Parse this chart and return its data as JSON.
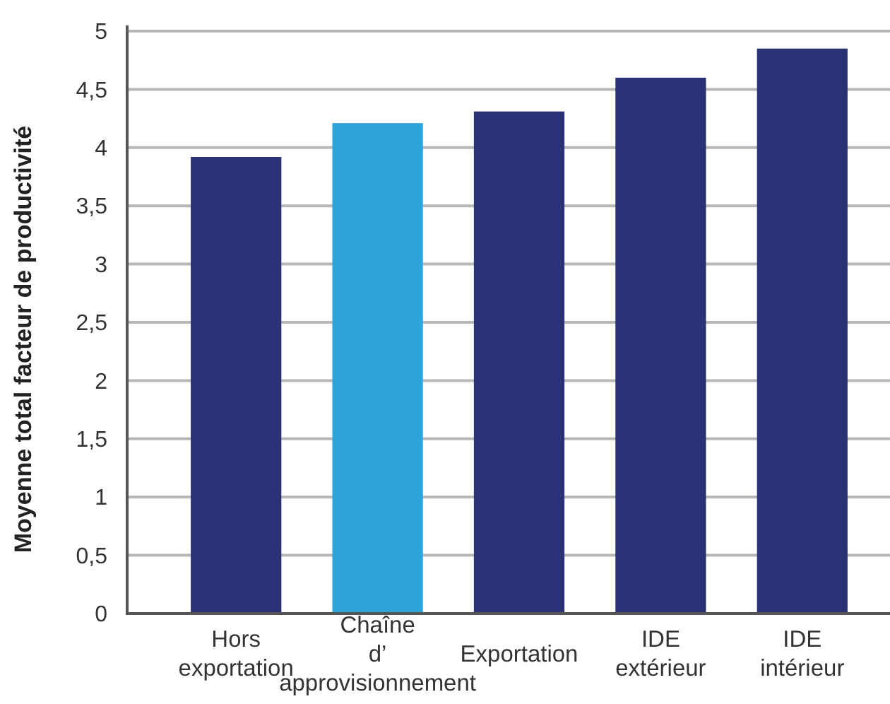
{
  "chart_data": {
    "type": "bar",
    "ylabel": "Moyenne total facteur de productivité",
    "categories": [
      "Hors exportation",
      "Chaîne d’ approvisionnement",
      "Exportation",
      "IDE extérieur",
      "IDE intérieur"
    ],
    "values": [
      3.92,
      4.21,
      4.31,
      4.6,
      4.85
    ],
    "colors": [
      "#2a3275",
      "#2ea3dc",
      "#2a3275",
      "#2a3275",
      "#2a3275"
    ],
    "ylim": [
      0,
      5
    ],
    "yticks": [
      0,
      {
        "value": 0.5,
        "label": "0,5"
      },
      1,
      {
        "value": 1.5,
        "label": "1,5"
      },
      2,
      {
        "value": 2.5,
        "label": "2,5"
      },
      3,
      {
        "value": 3.5,
        "label": "3,5"
      },
      4,
      {
        "value": 4.5,
        "label": "4,5"
      },
      5
    ],
    "grid": "y"
  }
}
